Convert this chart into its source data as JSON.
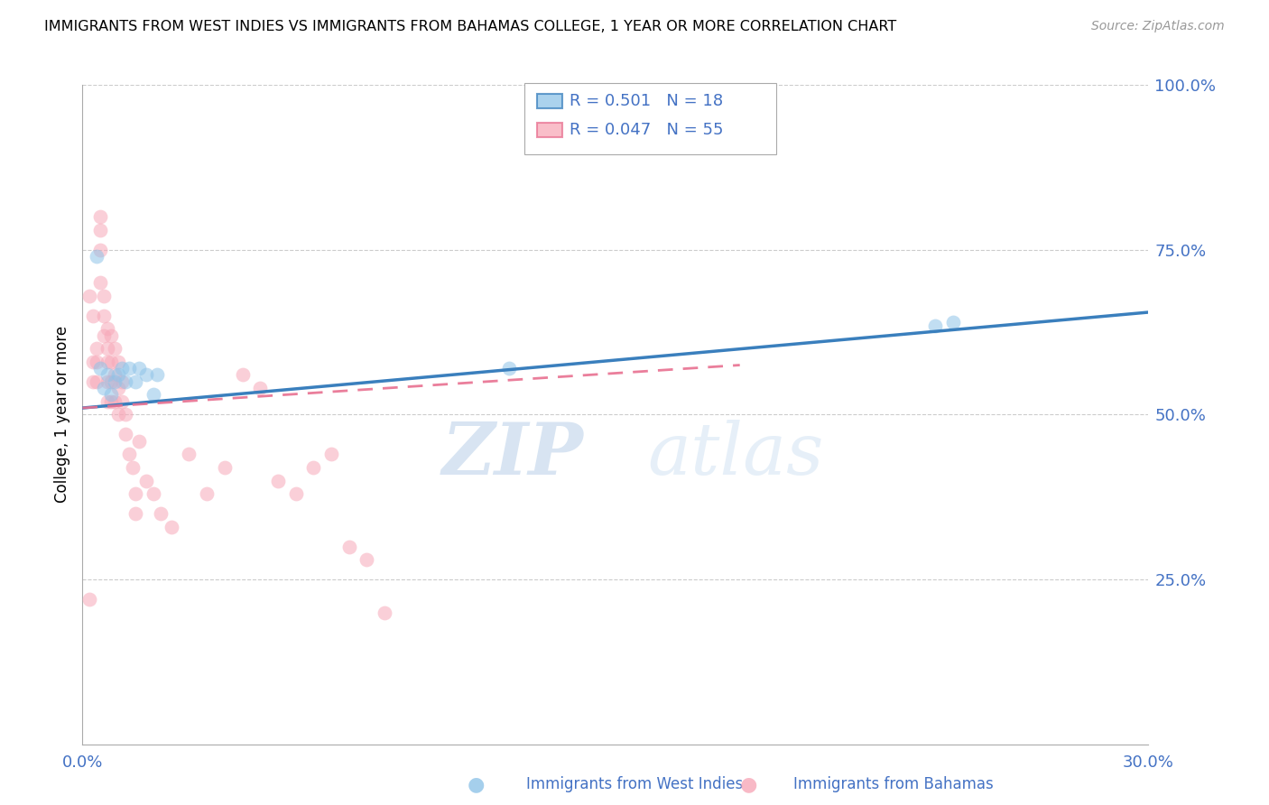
{
  "title": "IMMIGRANTS FROM WEST INDIES VS IMMIGRANTS FROM BAHAMAS COLLEGE, 1 YEAR OR MORE CORRELATION CHART",
  "source": "Source: ZipAtlas.com",
  "ylabel": "College, 1 year or more",
  "right_yticks": [
    0.0,
    0.25,
    0.5,
    0.75,
    1.0
  ],
  "right_yticklabels": [
    "",
    "25.0%",
    "50.0%",
    "75.0%",
    "100.0%"
  ],
  "xmin": 0.0,
  "xmax": 0.3,
  "ymin": 0.0,
  "ymax": 1.0,
  "legend_R1": "0.501",
  "legend_N1": "18",
  "legend_R2": "0.047",
  "legend_N2": "55",
  "legend_label1": "Immigrants from West Indies",
  "legend_label2": "Immigrants from Bahamas",
  "color_blue": "#8fc3e8",
  "color_pink": "#f7a8b8",
  "color_blue_line": "#3a7fbd",
  "color_pink_line": "#e87090",
  "color_axis": "#4472C4",
  "watermark_zip": "ZIP",
  "watermark_atlas": "atlas",
  "west_indies_x": [
    0.004,
    0.005,
    0.006,
    0.007,
    0.008,
    0.009,
    0.01,
    0.011,
    0.012,
    0.013,
    0.015,
    0.016,
    0.018,
    0.02,
    0.021,
    0.12,
    0.24,
    0.245
  ],
  "west_indies_y": [
    0.74,
    0.57,
    0.54,
    0.56,
    0.53,
    0.55,
    0.56,
    0.57,
    0.55,
    0.57,
    0.55,
    0.57,
    0.56,
    0.53,
    0.56,
    0.57,
    0.635,
    0.64
  ],
  "bahamas_x": [
    0.002,
    0.002,
    0.003,
    0.003,
    0.003,
    0.004,
    0.004,
    0.004,
    0.005,
    0.005,
    0.005,
    0.005,
    0.006,
    0.006,
    0.006,
    0.007,
    0.007,
    0.007,
    0.007,
    0.007,
    0.008,
    0.008,
    0.008,
    0.008,
    0.009,
    0.009,
    0.009,
    0.01,
    0.01,
    0.01,
    0.011,
    0.011,
    0.012,
    0.012,
    0.013,
    0.014,
    0.015,
    0.015,
    0.016,
    0.018,
    0.02,
    0.022,
    0.025,
    0.03,
    0.035,
    0.04,
    0.045,
    0.05,
    0.055,
    0.06,
    0.065,
    0.07,
    0.075,
    0.08,
    0.085
  ],
  "bahamas_y": [
    0.22,
    0.68,
    0.58,
    0.55,
    0.65,
    0.6,
    0.58,
    0.55,
    0.8,
    0.78,
    0.75,
    0.7,
    0.68,
    0.65,
    0.62,
    0.63,
    0.6,
    0.58,
    0.55,
    0.52,
    0.62,
    0.58,
    0.55,
    0.52,
    0.6,
    0.56,
    0.52,
    0.58,
    0.54,
    0.5,
    0.55,
    0.52,
    0.5,
    0.47,
    0.44,
    0.42,
    0.38,
    0.35,
    0.46,
    0.4,
    0.38,
    0.35,
    0.33,
    0.44,
    0.38,
    0.42,
    0.56,
    0.54,
    0.4,
    0.38,
    0.42,
    0.44,
    0.3,
    0.28,
    0.2
  ],
  "blue_line_x": [
    0.0,
    0.3
  ],
  "blue_line_y": [
    0.51,
    0.655
  ],
  "pink_line_x": [
    0.0,
    0.185
  ],
  "pink_line_y": [
    0.51,
    0.575
  ]
}
